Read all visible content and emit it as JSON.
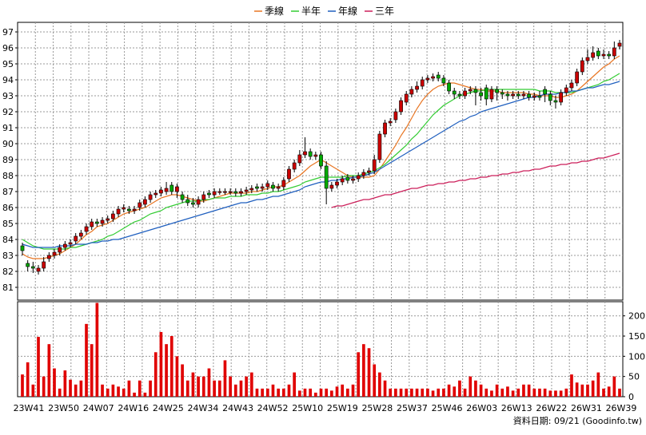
{
  "source_note": "資料日期: 09/21  (Goodinfo.tw)",
  "chart_data": [
    {
      "type": "candlestick",
      "title": "",
      "legend": [
        {
          "name": "季線",
          "color": "#e87522"
        },
        {
          "name": "半年",
          "color": "#33cc33"
        },
        {
          "name": "年線",
          "color": "#1f5fbf"
        },
        {
          "name": "三年",
          "color": "#cc1f5a"
        }
      ],
      "legend_position": "top-center",
      "y_ticks": [
        81,
        82,
        83,
        84,
        85,
        86,
        87,
        88,
        89,
        90,
        91,
        92,
        93,
        94,
        95,
        96,
        97
      ],
      "ylim": [
        80.2,
        97.6
      ],
      "x_labels": [
        "23W41",
        "23W50",
        "24W07",
        "24W16",
        "24W25",
        "24W34",
        "24W43",
        "24W52",
        "25W10",
        "25W19",
        "25W28",
        "25W37",
        "25W46",
        "26W03",
        "26W13",
        "26W22",
        "26W31",
        "26W39"
      ],
      "grid": true,
      "up_color": "#cc0000",
      "down_color": "#00aa00",
      "close": [
        83.3,
        82.3,
        82.2,
        82.2,
        82.6,
        83.0,
        83.2,
        83.5,
        83.7,
        83.8,
        84.2,
        84.4,
        84.8,
        85.1,
        85.0,
        85.2,
        85.3,
        85.6,
        85.9,
        86.0,
        85.8,
        85.9,
        86.3,
        86.5,
        86.8,
        86.9,
        87.1,
        87.2,
        87.0,
        87.3,
        86.5,
        86.3,
        86.2,
        86.5,
        86.8,
        86.8,
        87.0,
        87.0,
        87.0,
        87.0,
        86.9,
        87.0,
        87.1,
        87.2,
        87.2,
        87.3,
        87.5,
        87.2,
        87.3,
        87.7,
        88.4,
        88.8,
        89.3,
        89.5,
        89.2,
        89.3,
        88.6,
        87.2,
        87.4,
        87.6,
        87.8,
        87.7,
        87.8,
        88.0,
        88.2,
        88.3,
        89.0,
        90.6,
        91.3,
        91.4,
        92.0,
        92.7,
        93.1,
        93.4,
        93.6,
        94.0,
        94.1,
        94.2,
        94.1,
        93.8,
        93.3,
        93.1,
        93.0,
        93.3,
        93.4,
        93.2,
        93.0,
        92.8,
        93.4,
        93.2,
        93.1,
        93.0,
        93.1,
        93.0,
        93.1,
        92.9,
        93.0,
        92.9,
        93.1,
        92.7,
        92.6,
        93.2,
        93.5,
        93.8,
        94.5,
        95.2,
        95.4,
        95.7,
        95.5,
        95.6,
        95.5,
        96.0,
        96.3
      ],
      "open": [
        83.6,
        82.5,
        82.3,
        82.0,
        82.2,
        82.8,
        83.0,
        83.2,
        83.5,
        83.7,
        83.9,
        84.2,
        84.5,
        84.8,
        85.1,
        85.0,
        85.2,
        85.3,
        85.6,
        85.9,
        85.9,
        85.8,
        86.0,
        86.2,
        86.5,
        86.8,
        86.9,
        87.0,
        87.4,
        87.0,
        86.8,
        86.5,
        86.3,
        86.2,
        86.5,
        86.9,
        86.8,
        87.0,
        87.0,
        87.0,
        87.0,
        86.9,
        87.0,
        87.1,
        87.3,
        87.2,
        87.3,
        87.4,
        87.2,
        87.3,
        87.8,
        88.4,
        88.8,
        89.3,
        89.5,
        89.2,
        89.3,
        88.6,
        87.2,
        87.4,
        87.6,
        87.9,
        87.7,
        87.8,
        88.0,
        88.2,
        88.3,
        89.0,
        90.6,
        91.3,
        91.5,
        92.0,
        92.6,
        93.1,
        93.4,
        93.6,
        94.0,
        94.1,
        94.3,
        94.1,
        93.8,
        93.3,
        93.1,
        93.0,
        93.3,
        93.4,
        93.2,
        93.5,
        92.8,
        93.4,
        93.2,
        93.1,
        93.0,
        93.1,
        93.0,
        93.1,
        92.9,
        93.0,
        93.4,
        93.1,
        92.7,
        92.6,
        93.2,
        93.5,
        93.8,
        94.5,
        95.2,
        95.4,
        95.8,
        95.5,
        95.6,
        95.5,
        96.1
      ],
      "high": [
        83.8,
        82.7,
        82.6,
        82.4,
        82.9,
        83.2,
        83.4,
        83.7,
        83.9,
        84.0,
        84.4,
        84.6,
        85.0,
        85.3,
        85.3,
        85.4,
        85.5,
        85.8,
        86.1,
        86.2,
        86.1,
        86.1,
        86.5,
        86.7,
        87.0,
        87.1,
        87.3,
        87.6,
        87.6,
        87.5,
        87.0,
        86.8,
        86.6,
        86.7,
        87.0,
        87.1,
        87.2,
        87.2,
        87.2,
        87.2,
        87.2,
        87.2,
        87.3,
        87.4,
        87.5,
        87.5,
        87.7,
        87.6,
        87.5,
        87.9,
        88.6,
        89.0,
        89.6,
        90.4,
        89.7,
        89.5,
        89.5,
        88.9,
        87.6,
        87.8,
        88.0,
        88.1,
        88.0,
        88.2,
        88.4,
        88.5,
        89.3,
        90.8,
        91.5,
        91.6,
        92.2,
        92.9,
        93.3,
        93.6,
        93.9,
        94.2,
        94.3,
        94.4,
        94.5,
        94.3,
        94.0,
        93.5,
        93.3,
        93.5,
        93.6,
        93.6,
        93.5,
        93.7,
        93.6,
        93.6,
        93.4,
        93.3,
        93.3,
        93.3,
        93.3,
        93.3,
        93.2,
        93.3,
        93.6,
        93.3,
        93.0,
        93.4,
        93.7,
        94.0,
        94.7,
        95.4,
        95.9,
        96.1,
        96.0,
        95.9,
        95.8,
        96.4,
        96.5
      ],
      "low": [
        83.0,
        82.0,
        81.9,
        81.8,
        82.0,
        82.6,
        82.8,
        83.0,
        83.3,
        83.5,
        83.7,
        84.0,
        84.3,
        84.6,
        84.8,
        84.8,
        85.0,
        85.1,
        85.4,
        85.7,
        85.6,
        85.6,
        85.8,
        86.0,
        86.3,
        86.6,
        86.7,
        86.8,
        86.8,
        86.6,
        86.3,
        86.1,
        86.0,
        86.0,
        86.3,
        86.6,
        86.6,
        86.8,
        86.8,
        86.8,
        86.7,
        86.7,
        86.8,
        86.9,
        87.0,
        87.0,
        87.1,
        87.0,
        87.0,
        87.1,
        87.6,
        88.2,
        88.6,
        89.1,
        89.0,
        89.0,
        88.4,
        86.2,
        87.0,
        87.2,
        87.4,
        87.5,
        87.5,
        87.6,
        87.8,
        88.0,
        88.1,
        88.8,
        90.4,
        91.1,
        91.3,
        91.8,
        92.4,
        92.9,
        93.2,
        93.4,
        93.8,
        93.9,
        93.9,
        93.6,
        93.1,
        92.8,
        92.8,
        92.8,
        93.1,
        92.4,
        92.7,
        92.4,
        92.6,
        92.7,
        92.8,
        92.7,
        92.8,
        92.8,
        92.8,
        92.7,
        92.7,
        92.7,
        92.6,
        92.4,
        92.2,
        92.4,
        93.0,
        93.3,
        93.6,
        94.3,
        95.0,
        95.2,
        95.3,
        95.3,
        95.3,
        95.3,
        95.9
      ],
      "ma_season": [
        83.1,
        82.9,
        82.8,
        82.8,
        82.8,
        82.9,
        83.0,
        83.1,
        83.3,
        83.5,
        83.7,
        84.0,
        84.3,
        84.5,
        84.8,
        84.9,
        85.0,
        85.2,
        85.4,
        85.6,
        85.7,
        85.8,
        85.9,
        86.0,
        86.2,
        86.4,
        86.6,
        86.7,
        86.8,
        86.8,
        86.7,
        86.6,
        86.5,
        86.4,
        86.4,
        86.5,
        86.6,
        86.7,
        86.8,
        86.9,
        86.9,
        86.9,
        86.9,
        87.0,
        87.0,
        87.1,
        87.2,
        87.3,
        87.3,
        87.4,
        87.6,
        87.8,
        88.0,
        88.3,
        88.6,
        88.8,
        89.0,
        88.8,
        88.6,
        88.4,
        88.2,
        88.0,
        87.9,
        87.9,
        87.9,
        87.9,
        88.0,
        88.4,
        88.9,
        89.4,
        89.9,
        90.5,
        91.0,
        91.6,
        92.2,
        92.7,
        93.1,
        93.4,
        93.6,
        93.7,
        93.8,
        93.8,
        93.7,
        93.6,
        93.5,
        93.4,
        93.4,
        93.3,
        93.3,
        93.3,
        93.2,
        93.2,
        93.2,
        93.2,
        93.2,
        93.1,
        93.1,
        93.0,
        93.0,
        93.0,
        92.9,
        92.9,
        93.0,
        93.1,
        93.3,
        93.6,
        93.9,
        94.2,
        94.5,
        94.8,
        95.0,
        95.3,
        95.5
      ],
      "ma_half": [
        84.0,
        83.8,
        83.6,
        83.5,
        83.4,
        83.4,
        83.4,
        83.4,
        83.4,
        83.5,
        83.5,
        83.6,
        83.7,
        83.8,
        83.9,
        84.0,
        84.2,
        84.3,
        84.5,
        84.7,
        84.9,
        85.1,
        85.2,
        85.4,
        85.6,
        85.7,
        85.8,
        86.0,
        86.1,
        86.2,
        86.3,
        86.4,
        86.4,
        86.4,
        86.5,
        86.5,
        86.6,
        86.6,
        86.6,
        86.7,
        86.7,
        86.7,
        86.8,
        86.8,
        86.8,
        86.9,
        86.9,
        87.0,
        87.0,
        87.1,
        87.2,
        87.3,
        87.4,
        87.6,
        87.7,
        87.8,
        87.9,
        87.9,
        87.9,
        87.9,
        87.9,
        88.0,
        88.0,
        88.0,
        88.1,
        88.2,
        88.3,
        88.5,
        88.7,
        89.0,
        89.3,
        89.6,
        89.9,
        90.3,
        90.6,
        91.0,
        91.4,
        91.8,
        92.1,
        92.4,
        92.6,
        92.8,
        93.0,
        93.1,
        93.2,
        93.3,
        93.3,
        93.4,
        93.4,
        93.4,
        93.4,
        93.4,
        93.4,
        93.4,
        93.4,
        93.4,
        93.4,
        93.3,
        93.3,
        93.3,
        93.2,
        93.2,
        93.2,
        93.2,
        93.3,
        93.4,
        93.5,
        93.6,
        93.7,
        93.9,
        94.0,
        94.2,
        94.4
      ],
      "ma_year": [
        83.7,
        83.6,
        83.5,
        83.5,
        83.5,
        83.5,
        83.5,
        83.6,
        83.6,
        83.6,
        83.7,
        83.7,
        83.7,
        83.8,
        83.8,
        83.9,
        83.9,
        84.0,
        84.0,
        84.1,
        84.2,
        84.3,
        84.4,
        84.5,
        84.6,
        84.7,
        84.8,
        84.9,
        85.0,
        85.1,
        85.2,
        85.3,
        85.4,
        85.5,
        85.6,
        85.7,
        85.8,
        85.9,
        86.0,
        86.1,
        86.2,
        86.3,
        86.3,
        86.4,
        86.5,
        86.5,
        86.6,
        86.7,
        86.7,
        86.8,
        86.9,
        87.0,
        87.1,
        87.3,
        87.4,
        87.5,
        87.6,
        87.6,
        87.7,
        87.7,
        87.8,
        87.8,
        87.9,
        87.9,
        88.0,
        88.1,
        88.2,
        88.4,
        88.6,
        88.8,
        89.0,
        89.2,
        89.4,
        89.6,
        89.8,
        90.0,
        90.2,
        90.4,
        90.6,
        90.8,
        91.0,
        91.2,
        91.4,
        91.5,
        91.7,
        91.8,
        92.0,
        92.1,
        92.2,
        92.3,
        92.4,
        92.5,
        92.6,
        92.7,
        92.8,
        92.9,
        92.9,
        93.0,
        93.1,
        93.1,
        93.1,
        93.2,
        93.2,
        93.3,
        93.3,
        93.4,
        93.5,
        93.5,
        93.6,
        93.7,
        93.7,
        93.8,
        93.9
      ],
      "ma_3y_start_index": 58,
      "ma_3y": [
        86.0,
        86.1,
        86.1,
        86.2,
        86.3,
        86.4,
        86.5,
        86.5,
        86.6,
        86.7,
        86.8,
        86.8,
        86.9,
        87.0,
        87.1,
        87.2,
        87.2,
        87.3,
        87.4,
        87.4,
        87.5,
        87.5,
        87.6,
        87.6,
        87.7,
        87.7,
        87.8,
        87.8,
        87.9,
        87.9,
        88.0,
        88.0,
        88.1,
        88.1,
        88.2,
        88.2,
        88.3,
        88.3,
        88.4,
        88.4,
        88.5,
        88.6,
        88.6,
        88.7,
        88.7,
        88.8,
        88.8,
        88.9,
        88.9,
        89.0,
        89.1,
        89.1,
        89.2,
        89.3,
        89.4
      ]
    },
    {
      "type": "bar",
      "title": "",
      "y_ticks": [
        0,
        50,
        100,
        150,
        200
      ],
      "ylim": [
        0,
        235
      ],
      "grid": true,
      "bar_color": "#e00000",
      "values": [
        55,
        85,
        30,
        148,
        50,
        130,
        70,
        20,
        65,
        42,
        30,
        40,
        180,
        130,
        232,
        30,
        20,
        30,
        25,
        20,
        40,
        10,
        40,
        10,
        40,
        110,
        160,
        130,
        150,
        100,
        80,
        40,
        60,
        50,
        50,
        70,
        40,
        40,
        90,
        50,
        30,
        40,
        50,
        60,
        20,
        20,
        20,
        30,
        20,
        20,
        30,
        60,
        15,
        20,
        20,
        10,
        20,
        20,
        15,
        25,
        30,
        20,
        30,
        110,
        130,
        120,
        80,
        60,
        40,
        20,
        20,
        20,
        20,
        20,
        20,
        20,
        20,
        15,
        20,
        20,
        30,
        25,
        40,
        20,
        50,
        40,
        30,
        20,
        15,
        30,
        20,
        25,
        15,
        20,
        30,
        30,
        20,
        20,
        20,
        15,
        15,
        15,
        20,
        55,
        35,
        30,
        30,
        40,
        60,
        20,
        25,
        50,
        20
      ]
    }
  ]
}
